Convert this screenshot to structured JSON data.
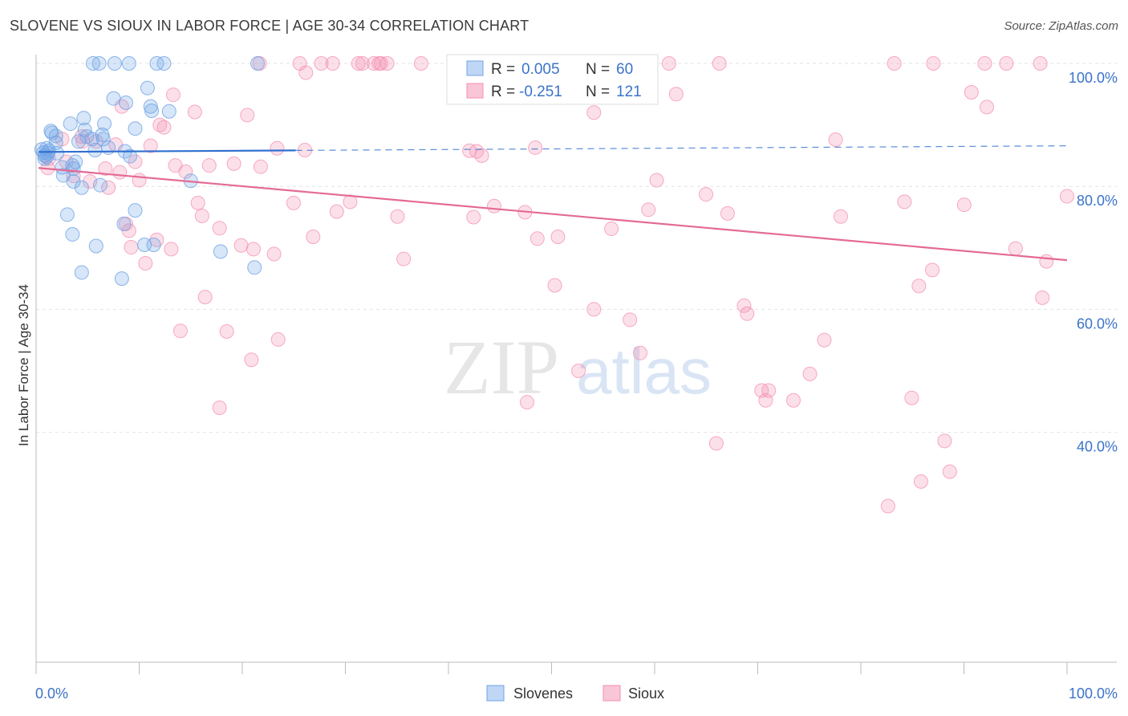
{
  "header": {
    "title": "SLOVENE VS SIOUX IN LABOR FORCE | AGE 30-34 CORRELATION CHART",
    "source": "Source: ZipAtlas.com"
  },
  "watermark": {
    "zip": "ZIP",
    "atlas": "atlas"
  },
  "legend_top": {
    "rows": [
      {
        "r_label": "R = ",
        "r_value": "0.005",
        "n_label": "N = ",
        "n_value": "60",
        "color": "#6fa4e6"
      },
      {
        "r_label": "R = ",
        "r_value": "-0.251",
        "n_label": "N = ",
        "n_value": "121",
        "color": "#f48fb1"
      }
    ]
  },
  "chart_data": {
    "type": "scatter",
    "title": "SLOVENE VS SIOUX IN LABOR FORCE | AGE 30-34 CORRELATION CHART",
    "xlabel": "",
    "ylabel": "In Labor Force | Age 30-34",
    "xlim": [
      0,
      100
    ],
    "ylim": [
      20,
      102
    ],
    "x_tick_labels": [
      "0.0%",
      "100.0%"
    ],
    "y_ticks": [
      40,
      60,
      80,
      100
    ],
    "y_tick_labels": [
      "40.0%",
      "60.0%",
      "80.0%",
      "100.0%"
    ],
    "grid": true,
    "legend_position": "bottom-center",
    "series": [
      {
        "name": "Slovenes",
        "color": "#6fa4e6",
        "line_color": "#2f6fd0",
        "trend": {
          "x0": 0,
          "y0": 85.6,
          "x1": 100,
          "y1": 86.6,
          "solid_until": 25
        },
        "points": [
          [
            5.3,
            100
          ],
          [
            5.9,
            100
          ],
          [
            7.4,
            100
          ],
          [
            8.8,
            100
          ],
          [
            11.5,
            100
          ],
          [
            12.2,
            100
          ],
          [
            21.3,
            100
          ],
          [
            7.3,
            94.3
          ],
          [
            10.6,
            96.0
          ],
          [
            8.5,
            93.6
          ],
          [
            11.0,
            92.3
          ],
          [
            10.9,
            93.0
          ],
          [
            12.7,
            92.2
          ],
          [
            4.4,
            91.1
          ],
          [
            1.2,
            89.0
          ],
          [
            3.1,
            90.2
          ],
          [
            6.4,
            90.2
          ],
          [
            9.4,
            89.4
          ],
          [
            4.5,
            89.2
          ],
          [
            1.3,
            88.7
          ],
          [
            1.7,
            88.2
          ],
          [
            4.7,
            88.1
          ],
          [
            6.3,
            87.7
          ],
          [
            5.2,
            87.7
          ],
          [
            3.9,
            87.3
          ],
          [
            1.7,
            87.1
          ],
          [
            0.8,
            86.2
          ],
          [
            6.8,
            86.3
          ],
          [
            0.3,
            86.0
          ],
          [
            5.5,
            85.9
          ],
          [
            0.5,
            85.5
          ],
          [
            0.9,
            85.4
          ],
          [
            1.8,
            85.4
          ],
          [
            8.4,
            85.7
          ],
          [
            0.6,
            85.0
          ],
          [
            8.9,
            84.9
          ],
          [
            0.8,
            84.8
          ],
          [
            0.6,
            84.5
          ],
          [
            3.6,
            84.0
          ],
          [
            3.3,
            83.4
          ],
          [
            3.4,
            82.9
          ],
          [
            2.3,
            83.1
          ],
          [
            2.4,
            81.8
          ],
          [
            3.4,
            80.8
          ],
          [
            4.2,
            79.8
          ],
          [
            6.0,
            80.2
          ],
          [
            14.8,
            80.9
          ],
          [
            2.8,
            75.4
          ],
          [
            9.4,
            76.1
          ],
          [
            8.3,
            73.9
          ],
          [
            3.3,
            72.2
          ],
          [
            5.6,
            70.3
          ],
          [
            11.2,
            70.5
          ],
          [
            17.7,
            69.4
          ],
          [
            4.2,
            66.0
          ],
          [
            8.1,
            65.0
          ],
          [
            21.0,
            66.8
          ],
          [
            10.3,
            70.5
          ],
          [
            6.2,
            88.4
          ],
          [
            1.0,
            85.8
          ]
        ]
      },
      {
        "name": "Sioux",
        "color": "#f48fb1",
        "line_color": "#e46a95",
        "trend": {
          "x0": 0,
          "y0": 83.0,
          "x1": 100,
          "y1": 68.0
        },
        "points": [
          [
            21.5,
            100
          ],
          [
            25.4,
            100
          ],
          [
            27.5,
            100
          ],
          [
            28.6,
            100
          ],
          [
            31.1,
            100
          ],
          [
            31.5,
            100
          ],
          [
            32.6,
            100
          ],
          [
            33.1,
            100
          ],
          [
            33.3,
            100
          ],
          [
            33.9,
            100
          ],
          [
            37.2,
            100
          ],
          [
            41.1,
            100
          ],
          [
            48.4,
            100
          ],
          [
            49.8,
            100
          ],
          [
            55.7,
            100
          ],
          [
            61.3,
            100
          ],
          [
            66.2,
            100
          ],
          [
            83.2,
            100
          ],
          [
            87.0,
            100
          ],
          [
            92.0,
            100
          ],
          [
            94.1,
            100
          ],
          [
            97.4,
            100
          ],
          [
            26.0,
            98.5
          ],
          [
            13.1,
            94.9
          ],
          [
            8.1,
            93.0
          ],
          [
            15.2,
            92.1
          ],
          [
            20.3,
            91.6
          ],
          [
            54.0,
            92.0
          ],
          [
            62.0,
            95.0
          ],
          [
            90.7,
            95.3
          ],
          [
            92.2,
            92.9
          ],
          [
            11.8,
            90.0
          ],
          [
            12.2,
            89.6
          ],
          [
            4.2,
            88.1
          ],
          [
            2.3,
            87.7
          ],
          [
            4.3,
            87.3
          ],
          [
            5.6,
            87.3
          ],
          [
            7.5,
            86.8
          ],
          [
            10.9,
            86.6
          ],
          [
            23.2,
            86.2
          ],
          [
            25.9,
            85.9
          ],
          [
            41.9,
            85.8
          ],
          [
            42.6,
            85.7
          ],
          [
            43.1,
            85.0
          ],
          [
            48.3,
            86.3
          ],
          [
            77.5,
            87.6
          ],
          [
            1.0,
            84.5
          ],
          [
            2.7,
            84.0
          ],
          [
            9.4,
            84.0
          ],
          [
            13.3,
            83.4
          ],
          [
            16.6,
            83.4
          ],
          [
            19.0,
            83.7
          ],
          [
            21.6,
            83.2
          ],
          [
            14.3,
            82.4
          ],
          [
            6.5,
            82.9
          ],
          [
            7.9,
            82.3
          ],
          [
            0.9,
            83.0
          ],
          [
            3.4,
            81.7
          ],
          [
            9.8,
            81.0
          ],
          [
            5.0,
            80.8
          ],
          [
            6.8,
            79.8
          ],
          [
            60.1,
            81.0
          ],
          [
            64.9,
            78.7
          ],
          [
            100,
            78.4
          ],
          [
            15.5,
            77.3
          ],
          [
            24.8,
            77.3
          ],
          [
            30.3,
            77.5
          ],
          [
            44.3,
            76.8
          ],
          [
            47.3,
            75.8
          ],
          [
            59.3,
            76.2
          ],
          [
            67.0,
            75.6
          ],
          [
            78.0,
            75.1
          ],
          [
            84.2,
            77.5
          ],
          [
            90.0,
            77.0
          ],
          [
            15.9,
            75.2
          ],
          [
            29.0,
            75.9
          ],
          [
            34.9,
            75.1
          ],
          [
            42.3,
            75.0
          ],
          [
            8.5,
            73.9
          ],
          [
            8.8,
            72.8
          ],
          [
            17.6,
            73.2
          ],
          [
            26.7,
            71.8
          ],
          [
            48.5,
            71.5
          ],
          [
            50.5,
            71.8
          ],
          [
            55.7,
            73.1
          ],
          [
            9.0,
            70.1
          ],
          [
            11.5,
            71.3
          ],
          [
            12.9,
            69.8
          ],
          [
            19.7,
            70.4
          ],
          [
            20.9,
            69.8
          ],
          [
            22.9,
            69.0
          ],
          [
            35.5,
            68.2
          ],
          [
            98.0,
            67.8
          ],
          [
            10.4,
            67.5
          ],
          [
            95.0,
            69.9
          ],
          [
            86.9,
            66.4
          ],
          [
            50.2,
            63.9
          ],
          [
            85.6,
            63.8
          ],
          [
            16.2,
            62.0
          ],
          [
            97.6,
            61.9
          ],
          [
            54.0,
            60.0
          ],
          [
            68.6,
            60.6
          ],
          [
            68.9,
            59.3
          ],
          [
            57.5,
            58.3
          ],
          [
            13.8,
            56.5
          ],
          [
            18.3,
            56.4
          ],
          [
            23.3,
            55.1
          ],
          [
            76.4,
            55.0
          ],
          [
            58.5,
            52.9
          ],
          [
            20.7,
            51.8
          ],
          [
            52.5,
            50.0
          ],
          [
            75.0,
            49.5
          ],
          [
            70.3,
            46.8
          ],
          [
            71.0,
            46.8
          ],
          [
            70.7,
            45.2
          ],
          [
            73.4,
            45.2
          ],
          [
            84.9,
            45.6
          ],
          [
            47.5,
            44.9
          ],
          [
            17.6,
            44.0
          ],
          [
            65.9,
            38.2
          ],
          [
            88.1,
            38.6
          ],
          [
            85.8,
            32.0
          ],
          [
            88.6,
            33.6
          ],
          [
            82.6,
            28.0
          ]
        ]
      }
    ]
  },
  "legend_bottom": {
    "items": [
      {
        "label": "Slovenes",
        "color": "#6fa4e6"
      },
      {
        "label": "Sioux",
        "color": "#f48fb1"
      }
    ]
  }
}
